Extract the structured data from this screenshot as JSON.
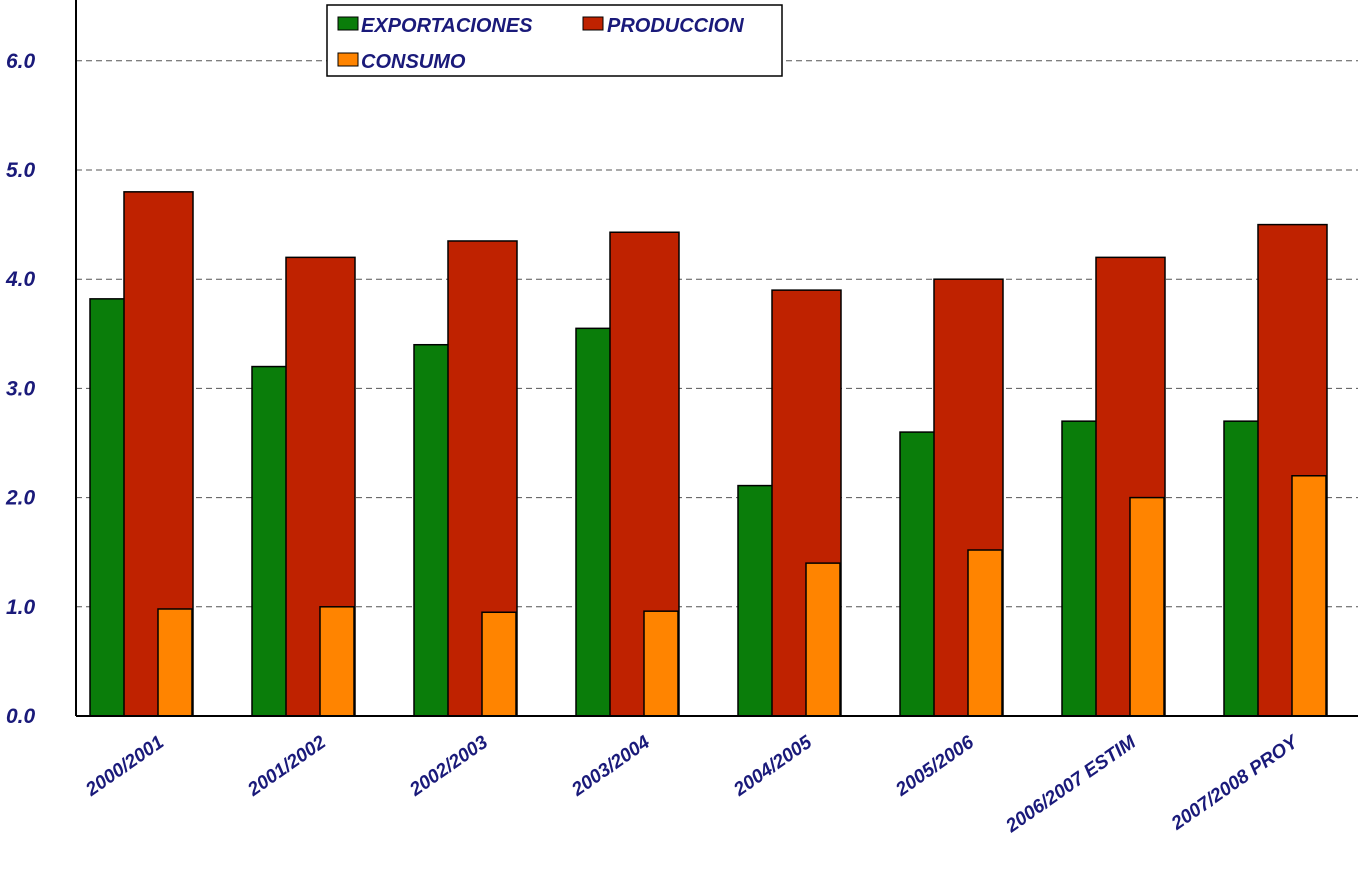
{
  "chart_data": {
    "type": "bar",
    "title": "",
    "xlabel": "",
    "ylabel": "",
    "categories": [
      "2000/2001",
      "2001/2002",
      "2002/2003",
      "2003/2004",
      "2004/2005",
      "2005/2006",
      "2006/2007 ESTIM",
      "2007/2008 PROY"
    ],
    "series": [
      {
        "name": "EXPORTACIONES",
        "color": "#0a7d0a",
        "values": [
          3.82,
          3.2,
          3.4,
          3.55,
          2.11,
          2.6,
          2.7,
          2.7
        ]
      },
      {
        "name": "PRODUCCION",
        "color": "#bf2200",
        "values": [
          4.8,
          4.2,
          4.35,
          4.43,
          3.9,
          4.0,
          4.2,
          4.5
        ]
      },
      {
        "name": "CONSUMO",
        "color": "#ff8400",
        "values": [
          0.98,
          1.0,
          0.95,
          0.96,
          1.4,
          1.52,
          2.0,
          2.2
        ]
      }
    ],
    "ylim": [
      0,
      6.6
    ],
    "yticks": [
      "0.0",
      "1.0",
      "2.0",
      "3.0",
      "4.0",
      "5.0",
      "6.0"
    ],
    "grid": true,
    "legend": "top-center"
  }
}
